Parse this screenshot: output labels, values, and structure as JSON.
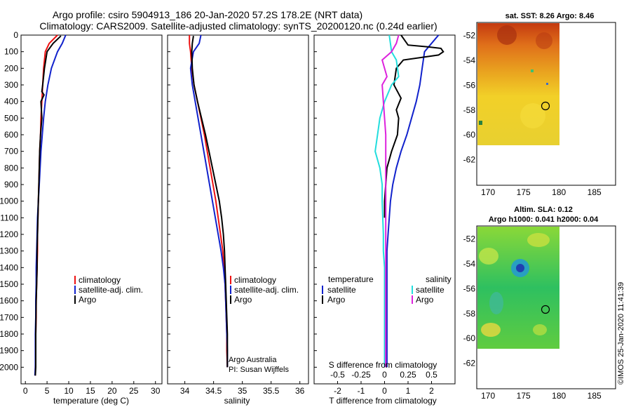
{
  "title_line1": "Argo profile: csiro 5904913_186 20-Jan-2020 57.2S 178.2E (NRT data)",
  "title_line2": "Climatology: CARS2009. Satellite-adjusted climatology: synTS_20200120.nc (0.24d earlier)",
  "credit_line1": "Argo Australia",
  "credit_line2": "PI: Susan Wijffels",
  "footer": "©IMOS 25-Jan-2020 11:41:39",
  "colors": {
    "climatology": "#ee1111",
    "satellite": "#1122cc",
    "argo": "#000000",
    "sat_t": "#22dddd",
    "argo_s": "#dd22dd"
  },
  "chart_data": [
    {
      "type": "line",
      "xlabel": "temperature (deg C)",
      "ylabel": "",
      "xlim": [
        -1,
        31.5
      ],
      "ylim": [
        2100,
        0
      ],
      "xticks": [
        0,
        5,
        10,
        15,
        20,
        25,
        30
      ],
      "yticks": [
        0,
        100,
        200,
        300,
        400,
        500,
        600,
        700,
        800,
        900,
        1000,
        1100,
        1200,
        1300,
        1400,
        1500,
        1600,
        1700,
        1800,
        1900,
        2000
      ],
      "legend": [
        "climatology",
        "satellite-adj. clim.",
        "Argo"
      ],
      "series": [
        {
          "name": "climatology",
          "color": "#ee1111",
          "x": [
            7.4,
            5.5,
            4.6,
            4.2,
            4.0,
            3.8,
            3.6,
            3.5,
            3.3,
            3.2,
            3.1,
            3.0,
            2.9,
            2.8,
            2.8,
            2.7,
            2.6,
            2.5,
            2.5,
            2.4,
            2.4,
            2.3,
            2.3
          ],
          "y": [
            0,
            50,
            100,
            200,
            300,
            400,
            500,
            600,
            700,
            800,
            900,
            1000,
            1100,
            1200,
            1300,
            1400,
            1500,
            1600,
            1700,
            1800,
            1900,
            2000,
            2050
          ]
        },
        {
          "name": "satellite-adj. clim.",
          "color": "#1122cc",
          "x": [
            9.3,
            8.5,
            7.4,
            6.0,
            5.2,
            4.6,
            4.2,
            3.9,
            3.6,
            3.4,
            3.2,
            3.0,
            2.8,
            2.7,
            2.6,
            2.5,
            2.5,
            2.4,
            2.4,
            2.3,
            2.3,
            2.3,
            2.2
          ],
          "y": [
            0,
            50,
            100,
            200,
            300,
            400,
            500,
            600,
            700,
            800,
            900,
            1000,
            1100,
            1200,
            1300,
            1400,
            1500,
            1600,
            1700,
            1800,
            1900,
            2000,
            2050
          ]
        },
        {
          "name": "Argo",
          "color": "#000000",
          "x": [
            8.2,
            6.4,
            5.0,
            4.4,
            4.0,
            3.8,
            4.3,
            3.6,
            3.8,
            3.5,
            3.3,
            3.2,
            3.1,
            3.0,
            2.9,
            2.8,
            2.7,
            2.7,
            2.6,
            2.5,
            2.4,
            2.4,
            2.3
          ],
          "y": [
            5,
            50,
            100,
            200,
            300,
            340,
            360,
            400,
            500,
            600,
            700,
            800,
            900,
            1000,
            1100,
            1200,
            1300,
            1400,
            1500,
            1600,
            1800,
            2000,
            2050
          ]
        }
      ]
    },
    {
      "type": "line",
      "xlabel": "salinity",
      "ylabel": "",
      "xlim": [
        33.7,
        36.15
      ],
      "ylim": [
        2100,
        0
      ],
      "xticks": [
        34,
        34.5,
        35,
        35.5,
        36
      ],
      "legend": [
        "climatology",
        "satellite-adj. clim.",
        "Argo"
      ],
      "series": [
        {
          "name": "climatology",
          "color": "#ee1111",
          "x": [
            34.08,
            34.08,
            34.1,
            34.12,
            34.16,
            34.22,
            34.28,
            34.34,
            34.39,
            34.44,
            34.49,
            34.54,
            34.58,
            34.62,
            34.66,
            34.68,
            34.7,
            34.71,
            34.72,
            34.73,
            34.73,
            34.74
          ],
          "y": [
            0,
            50,
            100,
            200,
            300,
            400,
            500,
            600,
            700,
            800,
            900,
            1000,
            1100,
            1200,
            1300,
            1400,
            1500,
            1600,
            1700,
            1800,
            1900,
            2000
          ]
        },
        {
          "name": "satellite-adj. clim.",
          "color": "#1122cc",
          "x": [
            34.28,
            34.25,
            34.15,
            34.1,
            34.13,
            34.18,
            34.23,
            34.28,
            34.33,
            34.38,
            34.43,
            34.48,
            34.53,
            34.58,
            34.63,
            34.67,
            34.7,
            34.71,
            34.72,
            34.73,
            34.74,
            34.74
          ],
          "y": [
            0,
            50,
            100,
            200,
            300,
            400,
            500,
            600,
            700,
            800,
            900,
            1000,
            1100,
            1200,
            1300,
            1400,
            1500,
            1600,
            1700,
            1800,
            1900,
            2000
          ]
        },
        {
          "name": "Argo",
          "color": "#000000",
          "x": [
            34.15,
            34.13,
            34.12,
            34.13,
            34.16,
            34.22,
            34.29,
            34.36,
            34.42,
            34.48,
            34.54,
            34.6,
            34.64,
            34.67,
            34.69,
            34.7,
            34.71,
            34.72,
            34.73,
            34.74,
            34.74,
            34.74
          ],
          "y": [
            5,
            50,
            100,
            200,
            300,
            400,
            500,
            600,
            700,
            800,
            900,
            1000,
            1100,
            1200,
            1300,
            1400,
            1500,
            1600,
            1700,
            1800,
            1900,
            2000
          ]
        }
      ]
    },
    {
      "type": "line",
      "xlabel": "T difference from climatology",
      "title": "S difference from climatology",
      "xlim": [
        -3.0,
        3.0
      ],
      "ylim": [
        2100,
        0
      ],
      "xticks": [
        -2,
        -1,
        0,
        1,
        2
      ],
      "top_ticks": [
        {
          "label": "-0.5",
          "at": -2.0
        },
        {
          "label": "-0.25",
          "at": -1.0
        },
        {
          "label": "0",
          "at": 0.0
        },
        {
          "label": "0.25",
          "at": 1.0
        },
        {
          "label": "0.5",
          "at": 2.0
        }
      ],
      "legend_left_title": "temperature",
      "legend_right_title": "salinity",
      "legend": [
        "satellite",
        "Argo",
        "satellite",
        "Argo"
      ],
      "series": [
        {
          "name": "satellite",
          "color": "#1122cc",
          "x": [
            2.3,
            2.0,
            1.7,
            1.6,
            1.5,
            1.35,
            1.15,
            0.95,
            0.7,
            0.5,
            0.35,
            0.25,
            0.2,
            0.15,
            0.1,
            0.1,
            0.1,
            0.1,
            0.1,
            0.1,
            0.1,
            0.1
          ],
          "y": [
            0,
            50,
            100,
            200,
            300,
            400,
            500,
            600,
            700,
            800,
            900,
            1000,
            1100,
            1200,
            1300,
            1400,
            1500,
            1600,
            1700,
            1800,
            1900,
            2000
          ]
        },
        {
          "name": "Argo",
          "color": "#000000",
          "x": [
            0.7,
            1.0,
            1.8,
            2.4,
            2.5,
            2.3,
            0.8,
            0.5,
            0.4,
            0.7,
            0.5,
            0.6,
            0.55,
            0.3,
            0.1,
            0.05,
            0.0,
            0.0
          ],
          "y": [
            0,
            60,
            70,
            80,
            100,
            120,
            150,
            200,
            300,
            380,
            450,
            500,
            600,
            700,
            800,
            900,
            1000,
            1100
          ]
        },
        {
          "name": "satellite",
          "color": "#22dddd",
          "x": [
            0.2,
            0.3,
            0.5,
            0.6,
            0.3,
            0.0,
            -0.2,
            -0.3,
            -0.4,
            -0.2,
            -0.1,
            -0.1,
            -0.05,
            -0.05,
            0.0,
            0.0,
            0.0,
            0.0,
            0.0,
            0.0,
            0.0
          ],
          "y": [
            0,
            100,
            150,
            250,
            300,
            400,
            500,
            600,
            700,
            800,
            900,
            1000,
            1200,
            1300,
            1400,
            1500,
            1600,
            1700,
            1800,
            1900,
            2000
          ]
        },
        {
          "name": "Argo",
          "color": "#dd22dd",
          "x": [
            0.6,
            0.5,
            0.3,
            -0.1,
            0.1,
            -0.1,
            -0.05,
            0.0,
            0.05,
            0.05,
            0.05,
            0.05,
            0.05,
            0.05,
            0.05,
            0.05,
            0.05,
            0.05,
            0.05,
            0.05
          ],
          "y": [
            0,
            50,
            100,
            150,
            250,
            300,
            400,
            500,
            600,
            700,
            800,
            900,
            1000,
            1200,
            1400,
            1600,
            1700,
            1800,
            1900,
            2000
          ]
        }
      ]
    },
    {
      "type": "heatmap",
      "title": "sat. SST: 8.26 Argo: 8.46",
      "xlim": [
        168.5,
        188
      ],
      "ylim": [
        -64,
        -51
      ],
      "xticks": [
        170,
        175,
        180,
        185
      ],
      "yticks": [
        -52,
        -54,
        -56,
        -58,
        -60,
        -62
      ],
      "marker": {
        "lon": 178.2,
        "lat": -57.2
      }
    },
    {
      "type": "heatmap",
      "title_line1": "Altim. SLA: 0.12",
      "title_line2": "Argo h1000: 0.041 h2000: 0.04",
      "xlim": [
        168.5,
        188
      ],
      "ylim": [
        -64,
        -51
      ],
      "xticks": [
        170,
        175,
        180,
        185
      ],
      "yticks": [
        -52,
        -54,
        -56,
        -58,
        -60,
        -62
      ],
      "marker": {
        "lon": 178.2,
        "lat": -57.2
      }
    }
  ]
}
